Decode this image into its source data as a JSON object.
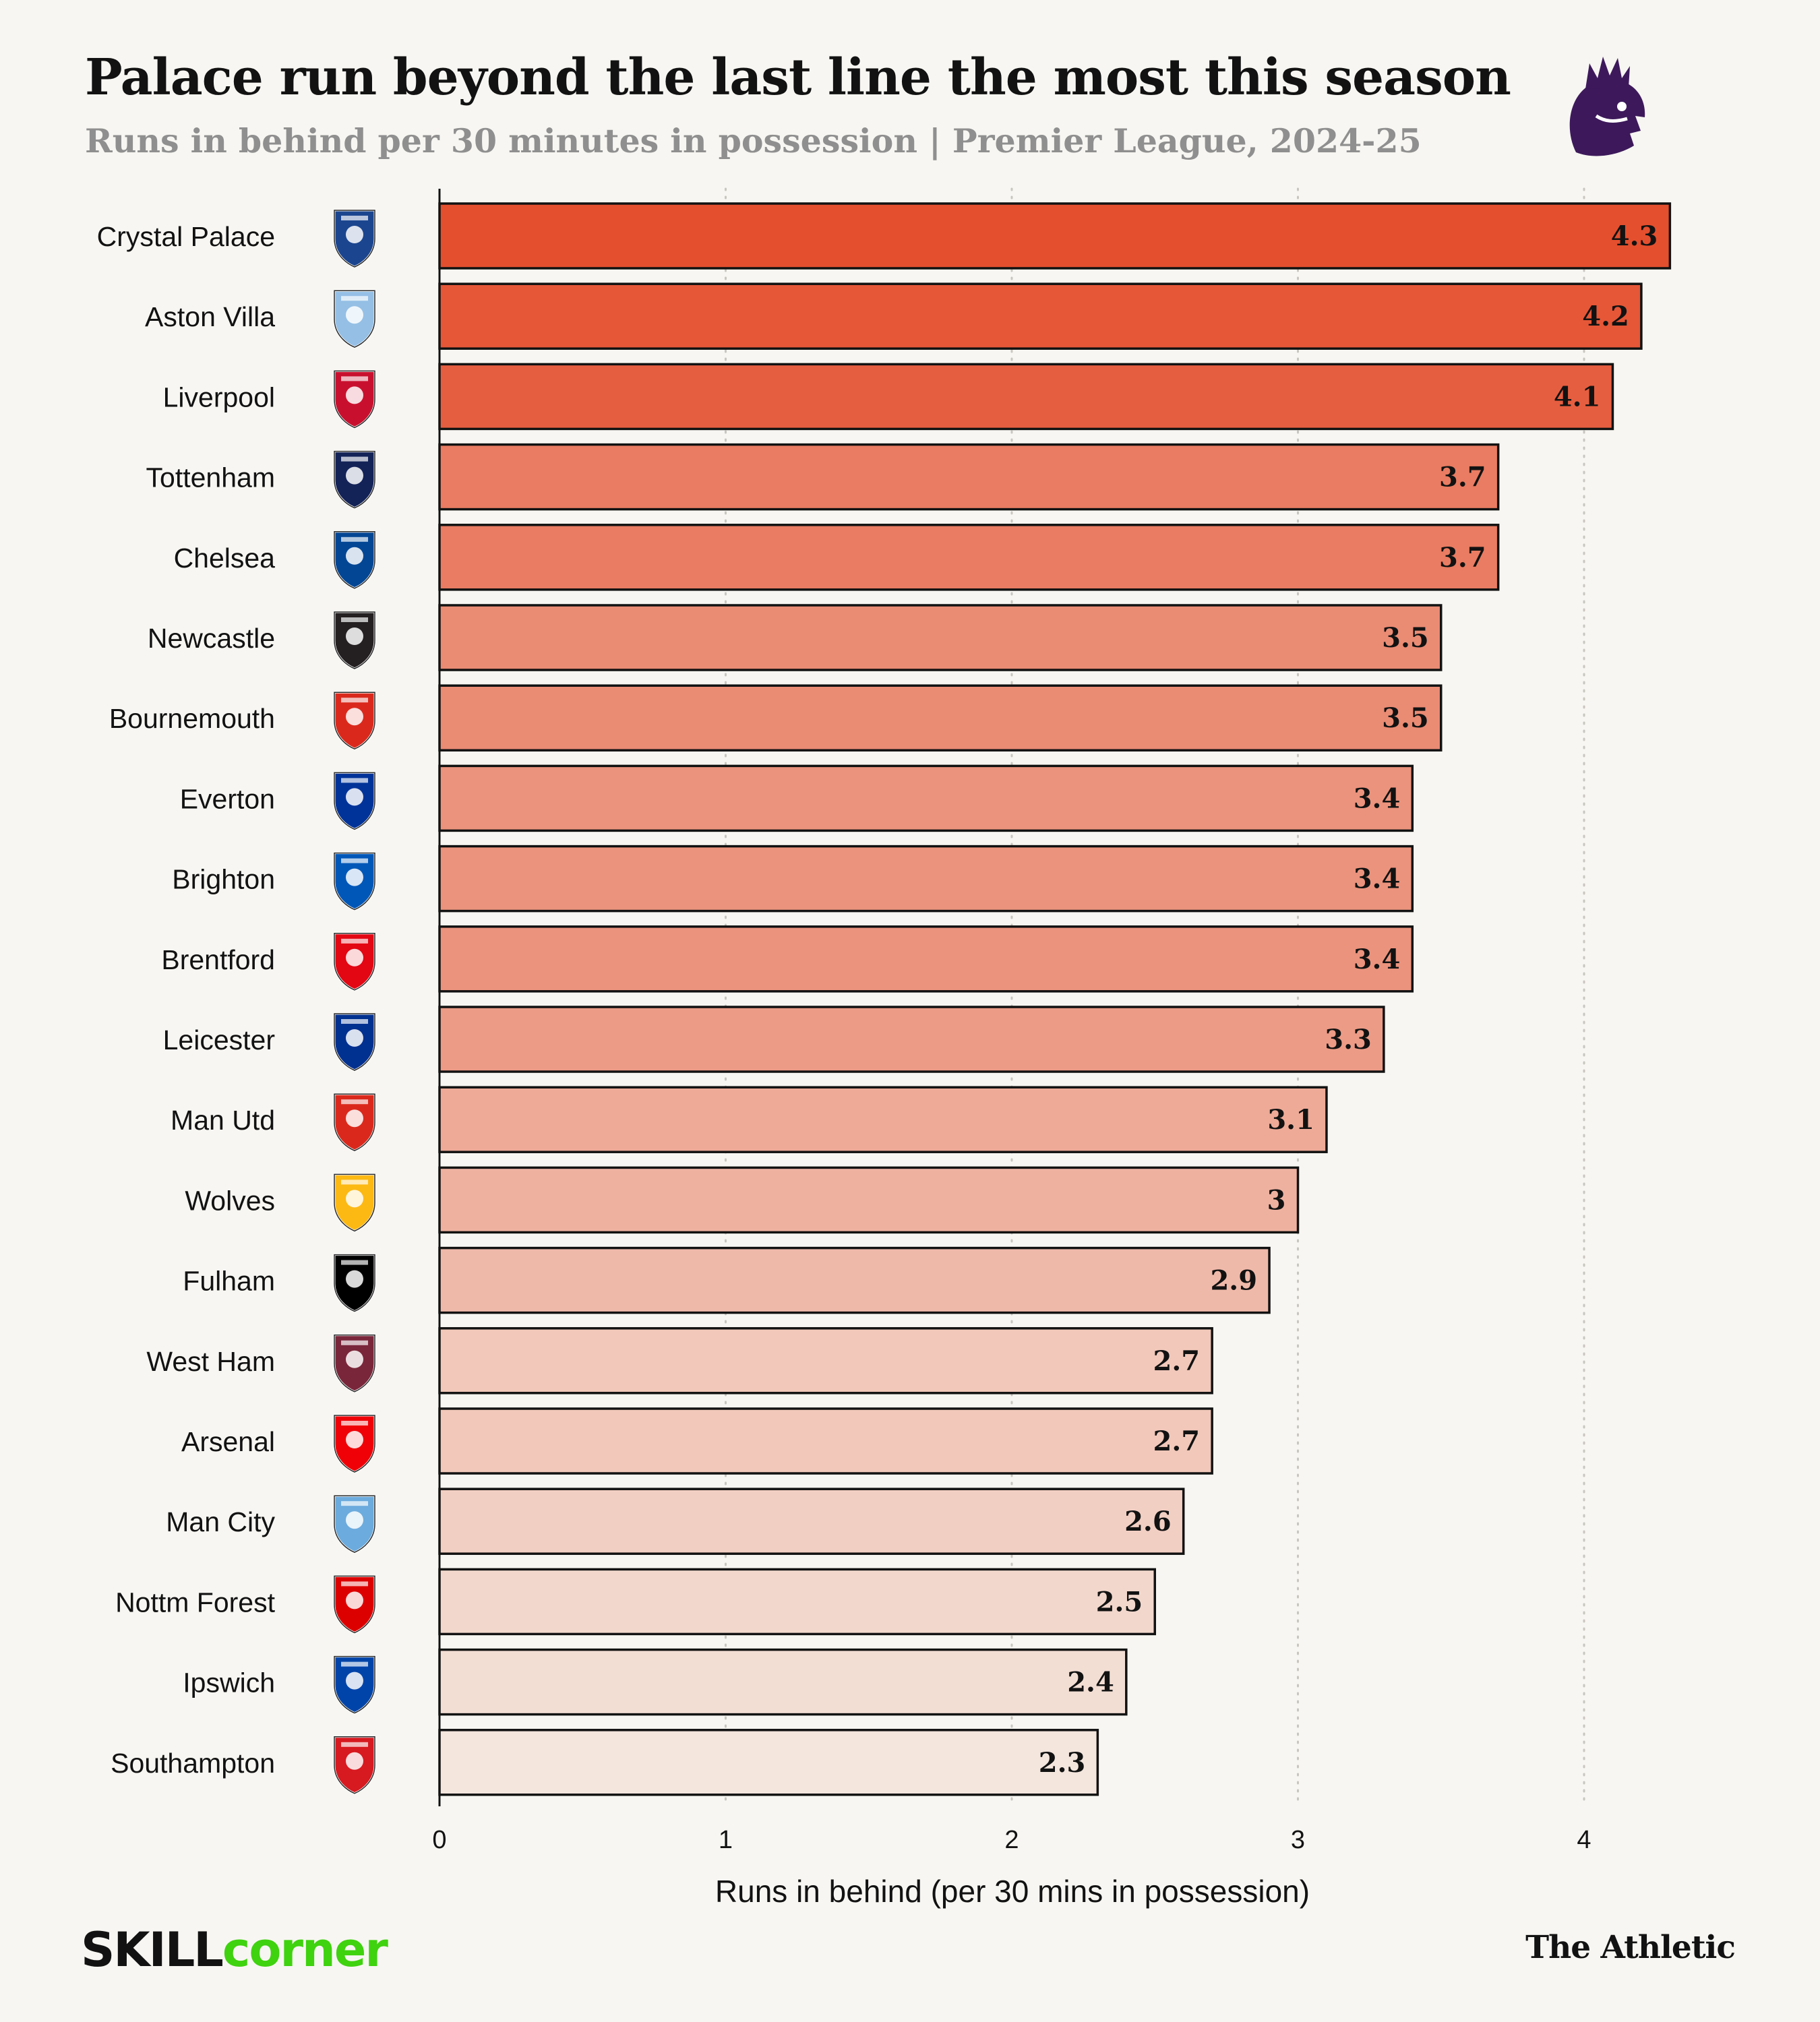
{
  "header": {
    "title": "Palace run beyond the last line the most this season",
    "subtitle": "Runs in behind per 30 minutes in possession | Premier League, 2024-25"
  },
  "footer": {
    "brand_left_a": "SKILL",
    "brand_left_b": "corner",
    "brand_right": "The Athletic"
  },
  "chart_data": {
    "type": "bar",
    "orientation": "horizontal",
    "title": "Palace run beyond the last line the most this season",
    "subtitle": "Runs in behind per 30 minutes in possession | Premier League, 2024-25",
    "xlabel": "Runs in behind (per 30 mins in possession)",
    "ylabel": "",
    "xlim": [
      0,
      4.3
    ],
    "xticks": [
      0,
      1,
      2,
      3,
      4
    ],
    "grid": "vertical dotted",
    "categories": [
      "Crystal Palace",
      "Aston Villa",
      "Liverpool",
      "Tottenham",
      "Chelsea",
      "Newcastle",
      "Bournemouth",
      "Everton",
      "Brighton",
      "Brentford",
      "Leicester",
      "Man Utd",
      "Wolves",
      "Fulham",
      "West Ham",
      "Arsenal",
      "Man City",
      "Nottm Forest",
      "Ipswich",
      "Southampton"
    ],
    "values": [
      4.3,
      4.2,
      4.1,
      3.7,
      3.7,
      3.5,
      3.5,
      3.4,
      3.4,
      3.4,
      3.3,
      3.1,
      3,
      2.9,
      2.7,
      2.7,
      2.6,
      2.5,
      2.4,
      2.3
    ],
    "value_labels": [
      "4.3",
      "4.2",
      "4.1",
      "3.7",
      "3.7",
      "3.5",
      "3.5",
      "3.4",
      "3.4",
      "3.4",
      "3.3",
      "3.1",
      "3",
      "2.9",
      "2.7",
      "2.7",
      "2.6",
      "2.5",
      "2.4",
      "2.3"
    ],
    "crest_icons": [
      "crystal-palace-crest-icon",
      "aston-villa-crest-icon",
      "liverpool-crest-icon",
      "tottenham-crest-icon",
      "chelsea-crest-icon",
      "newcastle-crest-icon",
      "bournemouth-crest-icon",
      "everton-crest-icon",
      "brighton-crest-icon",
      "brentford-crest-icon",
      "leicester-crest-icon",
      "man-utd-crest-icon",
      "wolves-crest-icon",
      "fulham-crest-icon",
      "west-ham-crest-icon",
      "arsenal-crest-icon",
      "man-city-crest-icon",
      "nottm-forest-crest-icon",
      "ipswich-crest-icon",
      "southampton-crest-icon"
    ],
    "crest_colors": [
      "#1b458f",
      "#95bfe5",
      "#c8102e",
      "#132257",
      "#034694",
      "#241f20",
      "#da291c",
      "#003399",
      "#0057b8",
      "#e30613",
      "#003090",
      "#da291c",
      "#fdb913",
      "#000000",
      "#7a263a",
      "#ef0107",
      "#6cabdd",
      "#dd0000",
      "#0044a9",
      "#d71920"
    ],
    "color_scale": [
      "#f4e6dd",
      "#e44f2e"
    ]
  }
}
